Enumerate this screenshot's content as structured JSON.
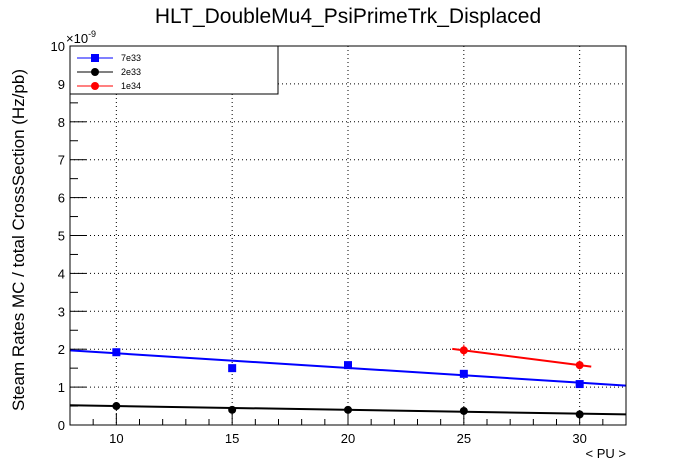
{
  "chart_data": {
    "type": "scatter",
    "title": "HLT_DoubleMu4_PsiPrimeTrk_Displaced",
    "xlabel": "< PU >",
    "ylabel": "Steam Rates MC / total CrossSection (Hz/pb)",
    "y_exponent_label": "×10",
    "y_exponent_power": "-9",
    "xlim": [
      8,
      32
    ],
    "ylim": [
      0,
      10
    ],
    "x_ticks": [
      10,
      15,
      20,
      25,
      30
    ],
    "x_tick_labels": [
      "10",
      "15",
      "20",
      "25",
      "30"
    ],
    "y_ticks": [
      0,
      1,
      2,
      3,
      4,
      5,
      6,
      7,
      8,
      9,
      10
    ],
    "y_tick_labels": [
      "0",
      "1",
      "2",
      "3",
      "4",
      "5",
      "6",
      "7",
      "8",
      "9",
      "10"
    ],
    "grid": true,
    "legend_position": "top-left",
    "series": [
      {
        "name": "7e33",
        "color": "#0000ff",
        "marker": "square",
        "x": [
          10,
          15,
          20,
          25,
          30
        ],
        "y": [
          1.92,
          1.5,
          1.58,
          1.35,
          1.08
        ],
        "fit": {
          "x": [
            8,
            32
          ],
          "y": [
            1.97,
            1.04
          ]
        }
      },
      {
        "name": "2e33",
        "color": "#000000",
        "marker": "circle",
        "x": [
          10,
          15,
          20,
          25,
          30
        ],
        "y": [
          0.5,
          0.4,
          0.4,
          0.37,
          0.28
        ],
        "fit": {
          "x": [
            8,
            32
          ],
          "y": [
            0.52,
            0.28
          ]
        }
      },
      {
        "name": "1e34",
        "color": "#ff0000",
        "marker": "circle",
        "x": [
          25,
          30
        ],
        "y": [
          1.97,
          1.58
        ],
        "yerr": [
          0.15,
          0.12
        ],
        "fit": {
          "x": [
            24.5,
            30.5
          ],
          "y": [
            2.01,
            1.54
          ]
        }
      }
    ]
  }
}
